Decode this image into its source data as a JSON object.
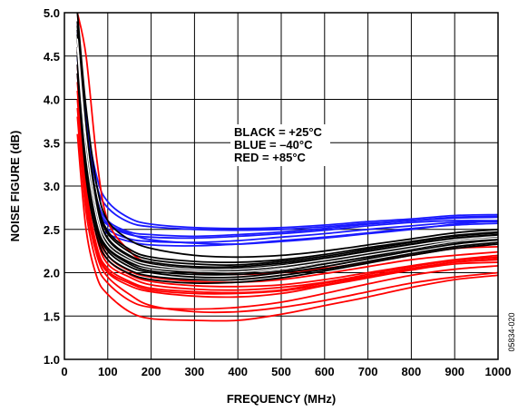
{
  "chart_data": {
    "type": "line",
    "xlabel": "FREQUENCY (MHz)",
    "ylabel": "NOISE FIGURE (dB)",
    "xlim": [
      0,
      1000
    ],
    "ylim": [
      1.0,
      5.0
    ],
    "x_ticks": [
      "0",
      "100",
      "200",
      "300",
      "400",
      "500",
      "600",
      "700",
      "800",
      "900",
      "1000"
    ],
    "y_ticks": [
      "1.0",
      "1.5",
      "2.0",
      "2.5",
      "3.0",
      "3.5",
      "4.0",
      "4.5",
      "5.0"
    ],
    "grid": true,
    "legend_lines": [
      "BLACK = +25°C",
      "BLUE = –40°C",
      "RED = +85°C"
    ],
    "figure_code": "05834-020",
    "colors": {
      "blue": "#1a1aff",
      "black": "#000000",
      "red": "#ff0000",
      "white": "#ffffff"
    },
    "x": [
      30,
      50,
      75,
      100,
      150,
      200,
      300,
      400,
      500,
      600,
      700,
      800,
      900,
      1000
    ],
    "series": [
      {
        "color": "blue",
        "values": [
          4.5,
          3.4,
          2.75,
          2.55,
          2.44,
          2.41,
          2.4,
          2.42,
          2.45,
          2.49,
          2.54,
          2.58,
          2.6,
          2.6
        ]
      },
      {
        "color": "blue",
        "values": [
          4.8,
          3.7,
          3.0,
          2.75,
          2.58,
          2.53,
          2.5,
          2.49,
          2.5,
          2.53,
          2.57,
          2.6,
          2.64,
          2.65
        ]
      },
      {
        "color": "blue",
        "values": [
          4.3,
          3.2,
          2.6,
          2.45,
          2.36,
          2.32,
          2.31,
          2.33,
          2.37,
          2.41,
          2.46,
          2.51,
          2.55,
          2.57
        ]
      },
      {
        "color": "blue",
        "values": [
          4.6,
          3.5,
          2.85,
          2.6,
          2.47,
          2.44,
          2.42,
          2.44,
          2.47,
          2.51,
          2.56,
          2.6,
          2.63,
          2.64
        ]
      },
      {
        "color": "blue",
        "values": [
          4.4,
          3.3,
          2.68,
          2.5,
          2.39,
          2.36,
          2.35,
          2.37,
          2.41,
          2.45,
          2.5,
          2.54,
          2.58,
          2.59
        ]
      },
      {
        "color": "blue",
        "values": [
          4.9,
          3.8,
          3.1,
          2.82,
          2.63,
          2.56,
          2.52,
          2.51,
          2.52,
          2.55,
          2.59,
          2.62,
          2.66,
          2.67
        ]
      },
      {
        "color": "blue",
        "values": [
          4.5,
          3.45,
          2.8,
          2.57,
          2.45,
          2.38,
          2.34,
          2.33,
          2.36,
          2.4,
          2.45,
          2.5,
          2.56,
          2.6
        ]
      },
      {
        "color": "red",
        "values": [
          3.9,
          2.8,
          2.2,
          1.95,
          1.75,
          1.62,
          1.55,
          1.55,
          1.6,
          1.68,
          1.78,
          1.88,
          1.95,
          2.0
        ]
      },
      {
        "color": "red",
        "values": [
          4.2,
          3.0,
          2.3,
          2.05,
          1.9,
          1.82,
          1.78,
          1.77,
          1.8,
          1.88,
          1.96,
          2.05,
          2.12,
          2.15
        ]
      },
      {
        "color": "red",
        "values": [
          4.4,
          3.15,
          2.45,
          2.15,
          1.98,
          1.9,
          1.85,
          1.84,
          1.86,
          1.92,
          2.0,
          2.08,
          2.15,
          2.2
        ]
      },
      {
        "color": "red",
        "values": [
          3.6,
          2.5,
          1.95,
          1.75,
          1.55,
          1.47,
          1.45,
          1.45,
          1.52,
          1.62,
          1.72,
          1.83,
          1.92,
          1.97
        ]
      },
      {
        "color": "red",
        "values": [
          4.0,
          2.9,
          2.25,
          2.0,
          1.85,
          1.78,
          1.73,
          1.72,
          1.76,
          1.85,
          1.94,
          2.03,
          2.1,
          2.12
        ]
      },
      {
        "color": "red",
        "values": [
          4.6,
          3.3,
          2.55,
          2.2,
          2.02,
          1.95,
          1.9,
          1.89,
          1.92,
          1.99,
          2.07,
          2.15,
          2.2,
          2.24
        ]
      },
      {
        "color": "red",
        "values": [
          5.0,
          4.5,
          3.3,
          2.6,
          2.25,
          2.1,
          2.0,
          1.98,
          2.0,
          2.05,
          2.12,
          2.2,
          2.28,
          2.3
        ]
      },
      {
        "color": "red",
        "values": [
          4.3,
          3.1,
          2.4,
          2.1,
          1.95,
          1.86,
          1.81,
          1.8,
          1.83,
          1.89,
          1.98,
          2.07,
          2.14,
          2.18
        ]
      },
      {
        "color": "red",
        "values": [
          4.1,
          2.95,
          2.28,
          2.02,
          1.88,
          1.8,
          1.76,
          1.76,
          1.79,
          1.86,
          1.95,
          2.04,
          2.12,
          2.16
        ]
      },
      {
        "color": "red",
        "values": [
          3.8,
          2.7,
          2.1,
          1.88,
          1.68,
          1.6,
          1.58,
          1.6,
          1.66,
          1.76,
          1.87,
          1.97,
          2.04,
          2.08
        ]
      },
      {
        "color": "black",
        "values": [
          4.6,
          3.4,
          2.6,
          2.3,
          2.12,
          2.05,
          2.0,
          2.0,
          2.05,
          2.12,
          2.2,
          2.28,
          2.36,
          2.4
        ]
      },
      {
        "color": "black",
        "values": [
          4.8,
          3.6,
          2.75,
          2.4,
          2.2,
          2.12,
          2.07,
          2.07,
          2.11,
          2.17,
          2.25,
          2.33,
          2.4,
          2.44
        ]
      },
      {
        "color": "black",
        "values": [
          4.5,
          3.3,
          2.55,
          2.25,
          2.07,
          2.0,
          1.95,
          1.95,
          2.0,
          2.07,
          2.16,
          2.25,
          2.33,
          2.38
        ]
      },
      {
        "color": "black",
        "values": [
          4.9,
          3.7,
          2.85,
          2.48,
          2.27,
          2.18,
          2.13,
          2.12,
          2.15,
          2.21,
          2.29,
          2.36,
          2.43,
          2.47
        ]
      },
      {
        "color": "black",
        "values": [
          4.7,
          3.5,
          2.68,
          2.35,
          2.16,
          2.08,
          2.03,
          2.03,
          2.08,
          2.14,
          2.22,
          2.3,
          2.38,
          2.42
        ]
      },
      {
        "color": "black",
        "values": [
          4.4,
          3.2,
          2.5,
          2.2,
          2.03,
          1.96,
          1.92,
          1.92,
          1.97,
          2.04,
          2.13,
          2.22,
          2.3,
          2.35
        ]
      },
      {
        "color": "black",
        "values": [
          5.0,
          3.9,
          3.0,
          2.6,
          2.38,
          2.28,
          2.2,
          2.18,
          2.2,
          2.25,
          2.32,
          2.39,
          2.46,
          2.5
        ]
      },
      {
        "color": "black",
        "values": [
          4.6,
          3.45,
          2.63,
          2.32,
          2.14,
          2.06,
          2.02,
          2.01,
          2.06,
          2.13,
          2.21,
          2.29,
          2.37,
          2.41
        ]
      },
      {
        "color": "black",
        "values": [
          4.3,
          3.1,
          2.42,
          2.15,
          1.99,
          1.92,
          1.88,
          1.89,
          1.94,
          2.02,
          2.11,
          2.2,
          2.28,
          2.33
        ]
      },
      {
        "color": "black",
        "values": [
          4.75,
          3.55,
          2.72,
          2.38,
          2.18,
          2.1,
          2.05,
          2.05,
          2.09,
          2.16,
          2.24,
          2.32,
          2.39,
          2.43
        ]
      },
      {
        "color": "black",
        "values": [
          4.85,
          3.65,
          2.8,
          2.45,
          2.24,
          2.15,
          2.1,
          2.09,
          2.13,
          2.19,
          2.27,
          2.35,
          2.42,
          2.46
        ]
      },
      {
        "color": "black",
        "values": [
          4.55,
          3.35,
          2.58,
          2.28,
          2.1,
          2.02,
          1.98,
          1.98,
          2.02,
          2.1,
          2.18,
          2.27,
          2.35,
          2.39
        ]
      },
      {
        "color": "white",
        "values": [
          4.6,
          3.4,
          2.62,
          2.31,
          2.14,
          2.06,
          2.02,
          2.01,
          2.05,
          2.12,
          2.2,
          2.28,
          2.36,
          2.4
        ]
      },
      {
        "color": "white",
        "values": [
          4.7,
          3.55,
          2.7,
          2.36,
          2.17,
          2.09,
          2.04,
          2.04,
          2.08,
          2.15,
          2.23,
          2.31,
          2.38,
          2.42
        ]
      }
    ]
  }
}
